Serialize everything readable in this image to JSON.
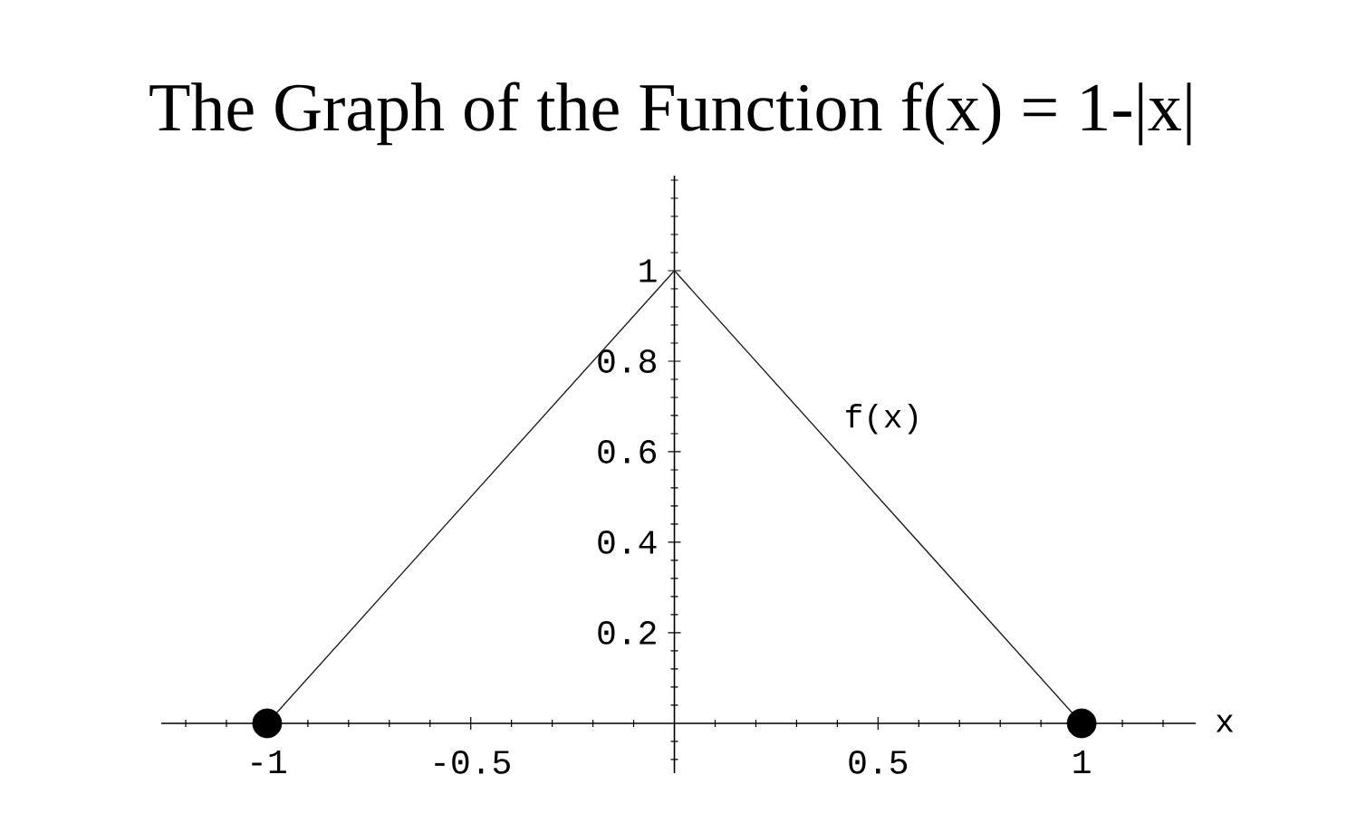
{
  "chart_data": {
    "type": "line",
    "title": "The Graph of the Function f(x) = 1-|x|",
    "xlabel": "x",
    "series": [
      {
        "name": "f(x)",
        "color": "#222222",
        "marker": "none",
        "x": [
          -1,
          0,
          1
        ],
        "values": [
          0,
          1,
          0
        ]
      },
      {
        "type": "scatter",
        "color": "#000000",
        "marker": "circle",
        "x": [
          -1,
          1
        ],
        "values": [
          0,
          0
        ]
      }
    ],
    "xlim": [
      -1.26,
      1.28
    ],
    "ylim": [
      -0.11,
      1.21
    ],
    "xticks": [
      -1,
      -0.5,
      0.5,
      1
    ],
    "yticks": [
      0.2,
      0.4,
      0.6,
      0.8,
      1
    ]
  }
}
